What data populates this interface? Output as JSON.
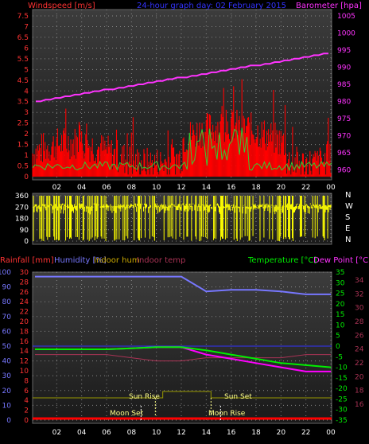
{
  "top_panel": {
    "title_left": "Windspeed [m/s]",
    "title_center": "24-hour graph day: 02 February 2015",
    "title_right": "Barometer [hpa]",
    "left_ticks": [
      "0",
      "0.5",
      "1",
      "1.5",
      "2",
      "2.5",
      "3",
      "3.5",
      "4",
      "4.5",
      "5",
      "5.5",
      "6",
      "6.5",
      "7",
      "7.5"
    ],
    "right_ticks": [
      "960",
      "965",
      "970",
      "975",
      "980",
      "985",
      "990",
      "995",
      "1000",
      "1005"
    ],
    "hour_ticks": [
      "02",
      "04",
      "06",
      "08",
      "10",
      "12",
      "14",
      "16",
      "18",
      "20",
      "22",
      "00"
    ],
    "colors": {
      "wind": "#ff0000",
      "gust": "#33cc33",
      "barometer": "#ff33ff",
      "left_axis": "#ff3333",
      "right_axis": "#ff33ff"
    }
  },
  "mid_panel": {
    "left_ticks": [
      "0",
      "90",
      "180",
      "270",
      "360"
    ],
    "compass": [
      "N",
      "W",
      "S",
      "E",
      "N"
    ],
    "color": "#ffff00"
  },
  "bottom_panel": {
    "legend": {
      "rainfall": "Rainfall [mm]",
      "humidity": "Humidity [%]",
      "indoor_hum": "Indoor hum",
      "indoor_temp": "Indoor temp",
      "temperature": "Temperature [°C]",
      "dew_point": "Dew Point [°C]"
    },
    "humidity_ticks": [
      "0",
      "10",
      "20",
      "30",
      "40",
      "50",
      "60",
      "70",
      "80",
      "90",
      "100"
    ],
    "rain_ticks": [
      "0",
      "2",
      "4",
      "6",
      "8",
      "10",
      "12",
      "14",
      "16",
      "18",
      "20",
      "22",
      "24",
      "26",
      "28",
      "30"
    ],
    "temp_ticks": [
      "35",
      "30",
      "25",
      "20",
      "15",
      "10",
      "5",
      "0",
      "-5",
      "-10",
      "-15",
      "-20",
      "-25",
      "-30",
      "-35"
    ],
    "indoor_ticks": [
      "34",
      "32",
      "30",
      "28",
      "26",
      "24",
      "22",
      "20",
      "18",
      "16"
    ],
    "annotations": {
      "sun_rise": "Sun Rise",
      "sun_set": "Sun Set",
      "moon_set": "Moon Set",
      "moon_rise": "Moon Rise"
    },
    "colors": {
      "humidity": "#7777ff",
      "temperature": "#00ee00",
      "dew_point": "#ff00ff",
      "indoor_temp": "#aa3355",
      "rain": "#ff0000",
      "sun": "#999900"
    }
  },
  "chart_data": [
    {
      "type": "line",
      "title": "24-hour graph day: 02 February 2015",
      "x": [
        "02",
        "04",
        "06",
        "08",
        "10",
        "12",
        "14",
        "16",
        "18",
        "20",
        "22",
        "00"
      ],
      "series": [
        {
          "name": "Barometer [hpa]",
          "values": [
            981,
            982,
            983,
            983.5,
            984,
            986,
            988,
            989,
            990,
            991,
            993,
            994
          ]
        },
        {
          "name": "Windspeed [m/s]",
          "values": [
            1.2,
            1.1,
            1.0,
            1.2,
            1.3,
            1.2,
            2.0,
            1.8,
            1.6,
            1.2,
            1.0,
            0.8
          ]
        }
      ],
      "ylabel": "Windspeed [m/s]",
      "ylim": [
        0,
        8
      ],
      "y2label": "Barometer [hpa]",
      "y2lim": [
        957,
        1010
      ]
    },
    {
      "type": "scatter",
      "title": "",
      "ylim": [
        0,
        360
      ],
      "yticks": [
        0,
        90,
        180,
        270,
        360
      ]
    },
    {
      "type": "line",
      "x": [
        "02",
        "04",
        "06",
        "08",
        "10",
        "12",
        "14",
        "16",
        "18",
        "20",
        "22",
        "00"
      ],
      "series": [
        {
          "name": "Humidity [%]",
          "values": [
            97,
            97,
            97,
            97,
            97,
            97,
            87,
            88,
            88,
            87,
            85,
            85
          ]
        },
        {
          "name": "Temperature [°C]",
          "values": [
            -1.5,
            -1.5,
            -1.5,
            -1.0,
            -0.5,
            -0.5,
            -2,
            -4,
            -6,
            -8,
            -9,
            -10
          ]
        },
        {
          "name": "Dew Point [°C]",
          "values": [
            -1.5,
            -1.5,
            -1.5,
            -1.0,
            -0.5,
            -0.5,
            -4,
            -6,
            -8,
            -10,
            -12,
            -12
          ]
        },
        {
          "name": "Indoor temp",
          "values": [
            25,
            25,
            25,
            24,
            23,
            23,
            24,
            24,
            24,
            24,
            25,
            25
          ]
        }
      ],
      "ylim": [
        0,
        100
      ],
      "y2lim": [
        -35,
        35
      ]
    }
  ]
}
